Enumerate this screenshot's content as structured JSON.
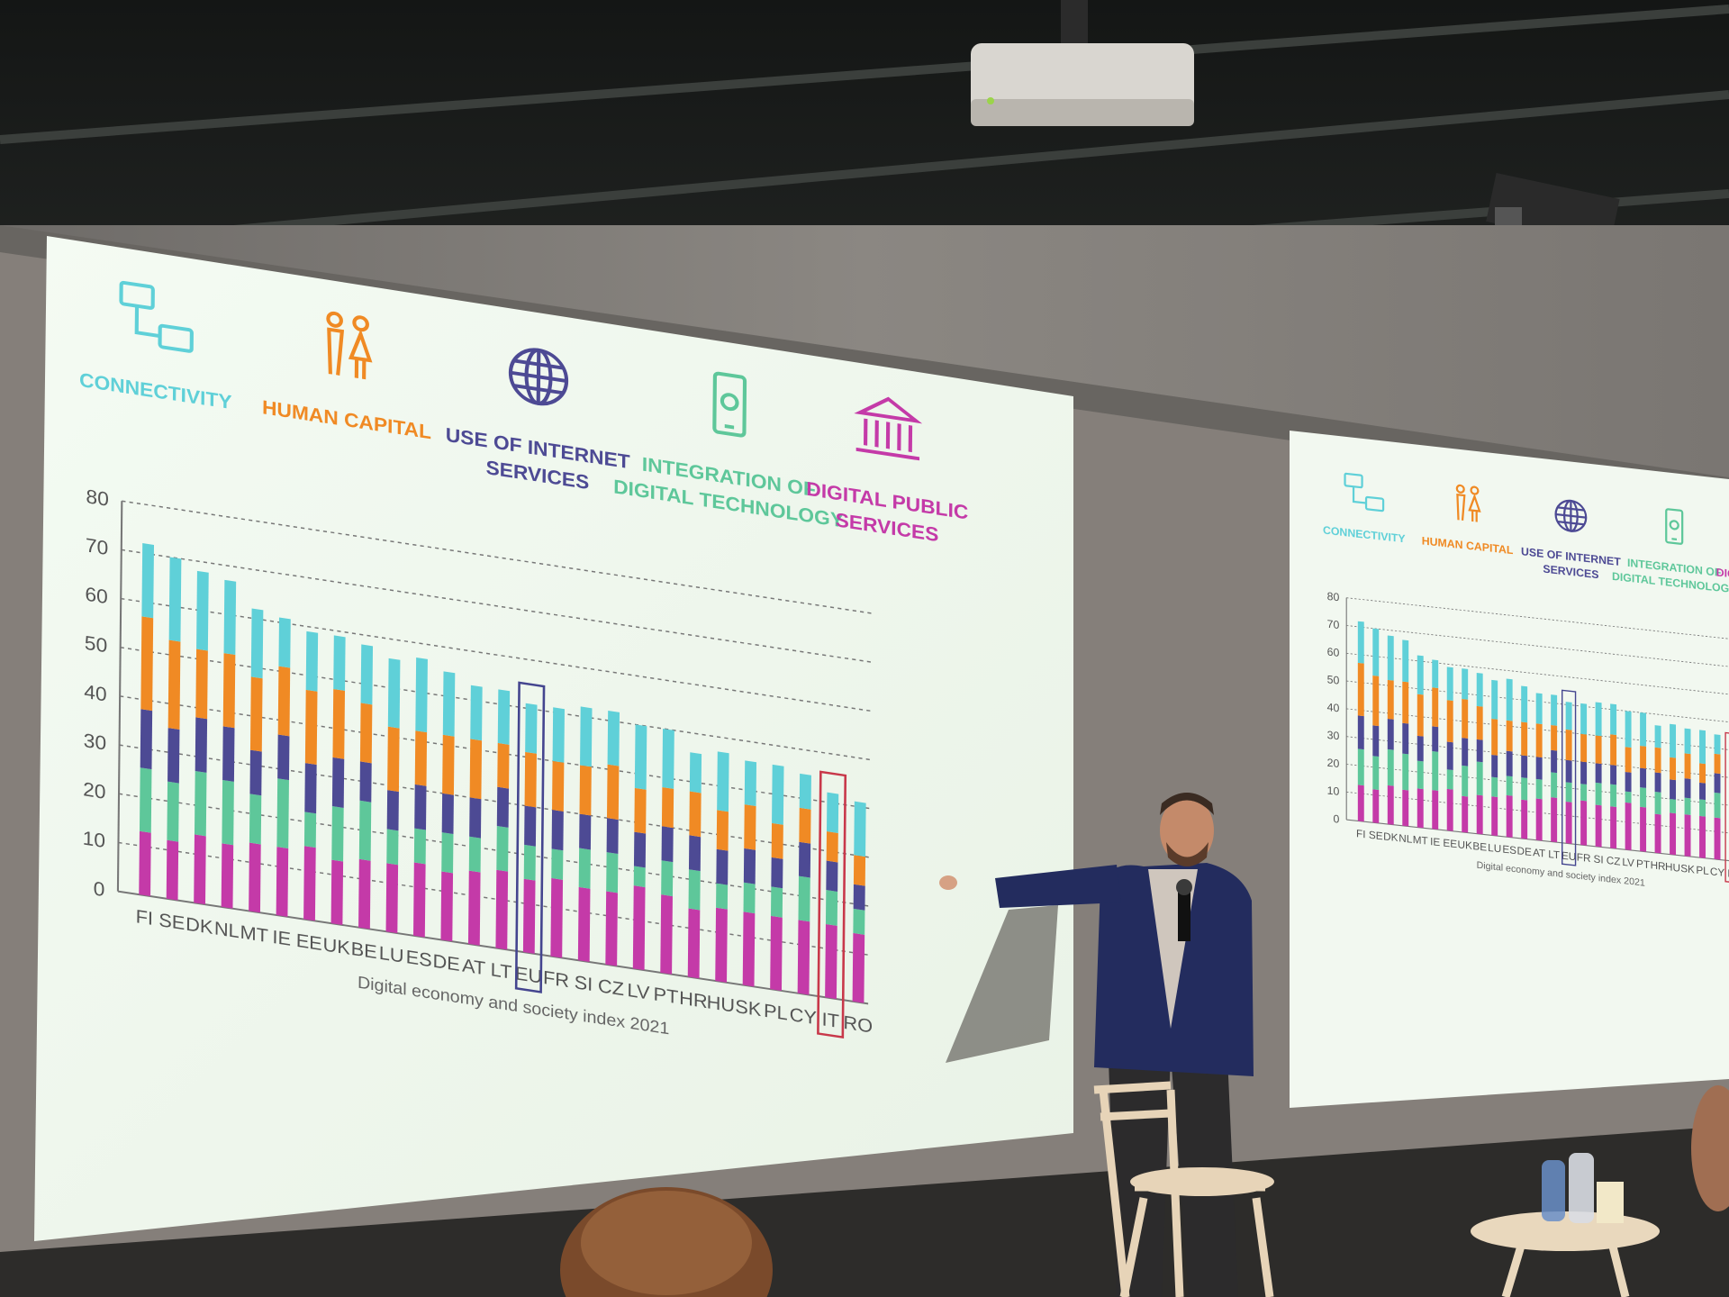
{
  "colors": {
    "connectivity": "#5fd0d8",
    "human_capital": "#f08a24",
    "internet_services": "#4d4a94",
    "digital_technology": "#5ec79a",
    "public_services": "#c43aa8",
    "eu_highlight": "#44458f",
    "it_highlight": "#c8384a"
  },
  "categories_header": [
    {
      "id": "connectivity",
      "lines": [
        "CONNECTIVITY"
      ],
      "icon": "computer-network-icon"
    },
    {
      "id": "human_capital",
      "lines": [
        "HUMAN CAPITAL"
      ],
      "icon": "people-icon"
    },
    {
      "id": "internet_services",
      "lines": [
        "USE OF INTERNET",
        "SERVICES"
      ],
      "icon": "globe-icon"
    },
    {
      "id": "digital_technology",
      "lines": [
        "INTEGRATION OF",
        "DIGITAL TECHNOLOGY"
      ],
      "icon": "smartphone-gear-icon"
    },
    {
      "id": "public_services",
      "lines": [
        "DIGITAL PUBLIC",
        "SERVICES"
      ],
      "icon": "government-building-icon"
    }
  ],
  "chart_data": {
    "type": "bar",
    "stacked": true,
    "title": "",
    "caption": "Digital economy and society index 2021",
    "xlabel": "",
    "ylabel": "",
    "ylim": [
      0,
      80
    ],
    "yticks": [
      0,
      10,
      20,
      30,
      40,
      50,
      60,
      70,
      80
    ],
    "grid": true,
    "categories": [
      "FI",
      "SE",
      "DK",
      "NL",
      "MT",
      "IE",
      "EE",
      "UK",
      "BE",
      "LU",
      "ES",
      "DE",
      "AT",
      "LT",
      "EU",
      "FR",
      "SI",
      "CZ",
      "LV",
      "PT",
      "HR",
      "HU",
      "SK",
      "PL",
      "CY",
      "IT",
      "RO"
    ],
    "highlighted": [
      "EU",
      "IT"
    ],
    "series": [
      {
        "key": "public_services",
        "values": [
          13,
          12,
          14,
          13,
          14,
          14,
          15,
          13,
          14,
          14,
          15,
          14,
          15,
          16,
          15,
          16,
          15,
          15,
          17,
          16,
          14,
          15,
          15,
          15,
          15,
          15,
          14
        ]
      },
      {
        "key": "digital_technology",
        "values": [
          13,
          12,
          13,
          13,
          10,
          14,
          7,
          11,
          12,
          7,
          7,
          8,
          7,
          9,
          7,
          6,
          8,
          8,
          4,
          7,
          8,
          5,
          6,
          6,
          9,
          7,
          5
        ]
      },
      {
        "key": "internet_services",
        "values": [
          12,
          11,
          11,
          11,
          9,
          9,
          10,
          10,
          8,
          8,
          9,
          8,
          8,
          8,
          8,
          8,
          7,
          7,
          7,
          7,
          7,
          7,
          7,
          6,
          7,
          6,
          5
        ]
      },
      {
        "key": "human_capital",
        "values": [
          19,
          18,
          14,
          15,
          15,
          14,
          15,
          14,
          12,
          13,
          11,
          12,
          12,
          9,
          11,
          10,
          10,
          11,
          9,
          8,
          9,
          8,
          9,
          7,
          7,
          6,
          6
        ]
      },
      {
        "key": "connectivity",
        "values": [
          15,
          17,
          16,
          15,
          14,
          10,
          12,
          11,
          12,
          14,
          15,
          13,
          11,
          11,
          10,
          11,
          12,
          11,
          13,
          12,
          8,
          12,
          9,
          12,
          7,
          8,
          11
        ]
      }
    ]
  }
}
